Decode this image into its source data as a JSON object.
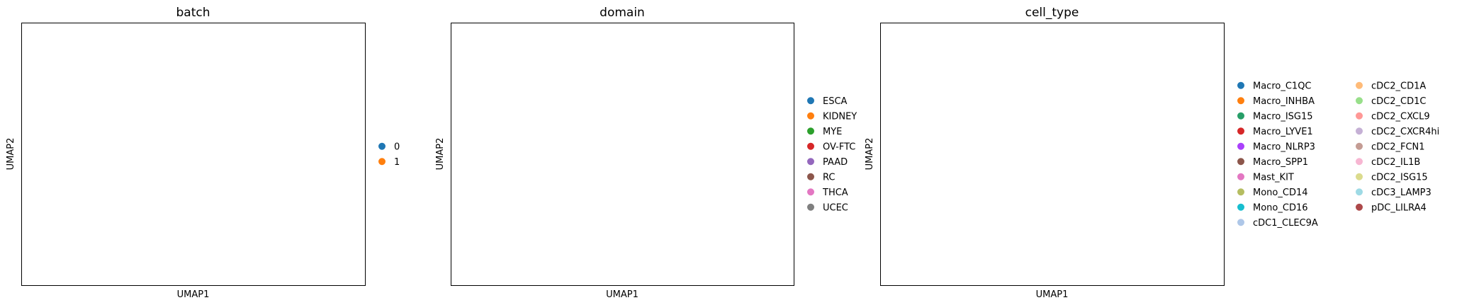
{
  "chart_data": [
    {
      "type": "scatter",
      "title": "batch",
      "xlabel": "UMAP1",
      "ylabel": "UMAP2",
      "legend_position": "right",
      "legend": [
        {
          "name": "0",
          "color": "#1f77b4"
        },
        {
          "name": "1",
          "color": "#ff7f0e"
        }
      ]
    },
    {
      "type": "scatter",
      "title": "domain",
      "xlabel": "UMAP1",
      "ylabel": "UMAP2",
      "legend_position": "right",
      "legend": [
        {
          "name": "ESCA",
          "color": "#1f77b4"
        },
        {
          "name": "KIDNEY",
          "color": "#ff7f0e"
        },
        {
          "name": "MYE",
          "color": "#2ca02c"
        },
        {
          "name": "OV-FTC",
          "color": "#d62728"
        },
        {
          "name": "PAAD",
          "color": "#9467bd"
        },
        {
          "name": "RC",
          "color": "#8c564b"
        },
        {
          "name": "THCA",
          "color": "#e377c2"
        },
        {
          "name": "UCEC",
          "color": "#7f7f7f"
        }
      ]
    },
    {
      "type": "scatter",
      "title": "cell_type",
      "xlabel": "UMAP1",
      "ylabel": "UMAP2",
      "legend_position": "right",
      "legend": [
        {
          "name": "Macro_C1QC",
          "color": "#1f77b4"
        },
        {
          "name": "Macro_INHBA",
          "color": "#ff7f0e"
        },
        {
          "name": "Macro_ISG15",
          "color": "#279e68"
        },
        {
          "name": "Macro_LYVE1",
          "color": "#d62728"
        },
        {
          "name": "Macro_NLRP3",
          "color": "#aa40fc"
        },
        {
          "name": "Macro_SPP1",
          "color": "#8c564b"
        },
        {
          "name": "Mast_KIT",
          "color": "#e377c2"
        },
        {
          "name": "Mono_CD14",
          "color": "#b5bd61"
        },
        {
          "name": "Mono_CD16",
          "color": "#17becf"
        },
        {
          "name": "cDC1_CLEC9A",
          "color": "#aec7e8"
        },
        {
          "name": "cDC2_CD1A",
          "color": "#ffbb78"
        },
        {
          "name": "cDC2_CD1C",
          "color": "#98df8a"
        },
        {
          "name": "cDC2_CXCL9",
          "color": "#ff9896"
        },
        {
          "name": "cDC2_CXCR4hi",
          "color": "#c5b0d5"
        },
        {
          "name": "cDC2_FCN1",
          "color": "#c49c94"
        },
        {
          "name": "cDC2_IL1B",
          "color": "#f7b6d2"
        },
        {
          "name": "cDC2_ISG15",
          "color": "#dbdb8d"
        },
        {
          "name": "cDC3_LAMP3",
          "color": "#9edae5"
        },
        {
          "name": "pDC_LILRA4",
          "color": "#ad494a"
        }
      ]
    }
  ]
}
